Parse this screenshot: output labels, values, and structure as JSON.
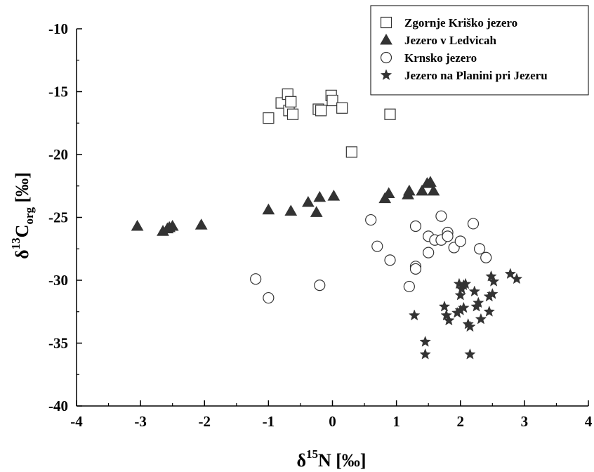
{
  "chart_data": {
    "type": "scatter",
    "title": "",
    "xlabel": {
      "base": "δ",
      "sup": "15",
      "rest": "N [‰]"
    },
    "ylabel": {
      "base": "δ",
      "sup": "13",
      "main": "C",
      "sub": "org",
      "rest": " [‰]"
    },
    "xlim": [
      -4,
      4
    ],
    "ylim": [
      -40,
      -10
    ],
    "xticks": [
      -4,
      -3,
      -2,
      -1,
      0,
      1,
      2,
      3,
      4
    ],
    "yticks": [
      -40,
      -35,
      -30,
      -25,
      -20,
      -15,
      -10
    ],
    "grid": false,
    "legend_position": "top-right",
    "series": [
      {
        "name": "Zgornje Kriško jezero",
        "marker": "open-square",
        "points": [
          [
            -1.0,
            -17.1
          ],
          [
            -0.8,
            -15.9
          ],
          [
            -0.7,
            -15.2
          ],
          [
            -0.68,
            -16.5
          ],
          [
            -0.65,
            -15.8
          ],
          [
            -0.62,
            -16.8
          ],
          [
            -0.22,
            -16.4
          ],
          [
            -0.18,
            -16.5
          ],
          [
            -0.02,
            -15.3
          ],
          [
            0.0,
            -15.7
          ],
          [
            0.15,
            -16.3
          ],
          [
            0.3,
            -19.8
          ],
          [
            0.9,
            -16.8
          ]
        ]
      },
      {
        "name": "Jezero v Ledvicah",
        "marker": "filled-triangle",
        "points": [
          [
            -3.05,
            -25.7
          ],
          [
            -2.65,
            -26.1
          ],
          [
            -2.58,
            -25.9
          ],
          [
            -2.55,
            -25.8
          ],
          [
            -2.5,
            -25.7
          ],
          [
            -2.05,
            -25.6
          ],
          [
            -1.0,
            -24.4
          ],
          [
            -0.65,
            -24.5
          ],
          [
            -0.38,
            -23.8
          ],
          [
            -0.2,
            -23.4
          ],
          [
            -0.25,
            -24.6
          ],
          [
            0.02,
            -23.3
          ],
          [
            0.82,
            -23.5
          ],
          [
            0.88,
            -23.1
          ],
          [
            1.18,
            -23.2
          ],
          [
            1.2,
            -22.9
          ],
          [
            1.4,
            -22.9
          ],
          [
            1.48,
            -22.3
          ],
          [
            1.53,
            -22.2
          ],
          [
            1.58,
            -22.9
          ]
        ]
      },
      {
        "name": "Krnsko jezero",
        "marker": "open-circle",
        "points": [
          [
            -1.2,
            -29.9
          ],
          [
            -1.0,
            -31.4
          ],
          [
            -0.2,
            -30.4
          ],
          [
            0.6,
            -25.2
          ],
          [
            0.7,
            -27.3
          ],
          [
            0.9,
            -28.4
          ],
          [
            1.2,
            -30.5
          ],
          [
            1.3,
            -25.7
          ],
          [
            1.3,
            -28.9
          ],
          [
            1.3,
            -29.1
          ],
          [
            1.5,
            -26.5
          ],
          [
            1.5,
            -27.8
          ],
          [
            1.6,
            -26.8
          ],
          [
            1.7,
            -24.9
          ],
          [
            1.7,
            -26.8
          ],
          [
            1.8,
            -26.2
          ],
          [
            1.8,
            -26.5
          ],
          [
            1.9,
            -27.4
          ],
          [
            2.0,
            -26.9
          ],
          [
            2.2,
            -25.5
          ],
          [
            2.3,
            -27.5
          ],
          [
            2.4,
            -28.2
          ]
        ]
      },
      {
        "name": "Jezero na Planini pri Jezeru",
        "marker": "filled-star",
        "points": [
          [
            1.28,
            -32.8
          ],
          [
            1.45,
            -34.9
          ],
          [
            1.45,
            -35.9
          ],
          [
            1.75,
            -32.1
          ],
          [
            1.78,
            -32.8
          ],
          [
            1.82,
            -33.2
          ],
          [
            1.98,
            -30.3
          ],
          [
            2.0,
            -31.2
          ],
          [
            2.0,
            -32.4
          ],
          [
            2.02,
            -30.7
          ],
          [
            2.05,
            -32.2
          ],
          [
            2.05,
            -30.4
          ],
          [
            2.08,
            -30.3
          ],
          [
            2.12,
            -33.5
          ],
          [
            2.15,
            -33.7
          ],
          [
            2.15,
            -35.9
          ],
          [
            2.22,
            -30.9
          ],
          [
            2.25,
            -32.1
          ],
          [
            2.28,
            -31.8
          ],
          [
            2.32,
            -33.1
          ],
          [
            2.45,
            -32.5
          ],
          [
            2.45,
            -31.3
          ],
          [
            2.48,
            -29.7
          ],
          [
            2.5,
            -31.1
          ],
          [
            2.52,
            -30.1
          ],
          [
            2.78,
            -29.5
          ],
          [
            2.88,
            -29.9
          ],
          [
            1.95,
            -32.6
          ]
        ]
      }
    ]
  }
}
